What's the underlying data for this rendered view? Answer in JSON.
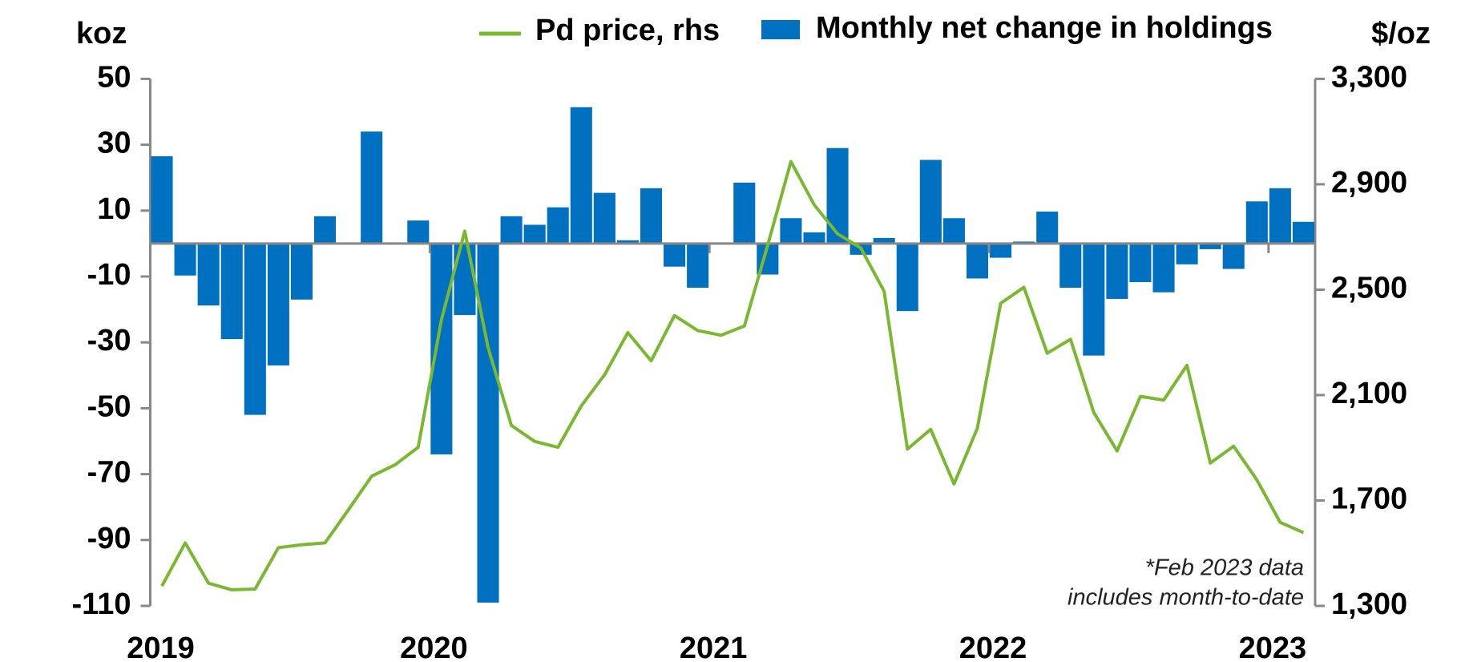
{
  "chart_data": {
    "type": "bar_line",
    "categories": [
      "2019",
      null,
      null,
      null,
      null,
      null,
      null,
      null,
      null,
      null,
      null,
      null,
      "2020",
      null,
      null,
      null,
      null,
      null,
      null,
      null,
      null,
      null,
      null,
      null,
      "2021",
      null,
      null,
      null,
      null,
      null,
      null,
      null,
      null,
      null,
      null,
      null,
      "2022",
      null,
      null,
      null,
      null,
      null,
      null,
      null,
      null,
      null,
      null,
      null,
      "2023",
      null
    ],
    "y_axis_label": "koz",
    "y2_axis_label": "$/oz",
    "series": [
      {
        "name": "Monthly net change in holdings",
        "type": "bar",
        "color": "#0070c0",
        "values": [
          26.5,
          -9.7,
          -18.8,
          -29,
          -52,
          -37,
          -17,
          8.3,
          0,
          34,
          0,
          7,
          -64,
          -21.7,
          -109,
          8.3,
          5.7,
          11,
          41.4,
          15.4,
          1,
          16.8,
          -7,
          -13.4,
          0,
          18.5,
          -9.4,
          7.7,
          3.4,
          29,
          -3.4,
          1.7,
          -20.5,
          25.4,
          7.7,
          -10.6,
          -4.3,
          0.6,
          9.7,
          -13.4,
          -34,
          -16.8,
          -11.7,
          -14.8,
          -6.3,
          -1.7,
          -7.7,
          12.8,
          16.8,
          6.6
        ]
      },
      {
        "name": "Pd price, rhs",
        "type": "line",
        "axis": "y2",
        "color": "#7ab830",
        "values": [
          1375,
          1539,
          1386,
          1361,
          1364,
          1521,
          1532,
          1539,
          1664,
          1792,
          1835,
          1902,
          2387,
          2722,
          2280,
          1985,
          1924,
          1902,
          2059,
          2177,
          2337,
          2230,
          2402,
          2345,
          2327,
          2362,
          2669,
          2986,
          2822,
          2712,
          2658,
          2494,
          1895,
          1970,
          1763,
          1974,
          2448,
          2509,
          2259,
          2312,
          2034,
          1888,
          2095,
          2081,
          2213,
          1842,
          1906,
          1778,
          1617,
          1578
        ]
      }
    ],
    "ylim": [
      -110,
      50
    ],
    "yticks": [
      -110,
      -90,
      -70,
      -50,
      -30,
      -10,
      10,
      30,
      50
    ],
    "y2lim": [
      1300,
      3300
    ],
    "y2ticks": [
      {
        "value": 1300,
        "label": "1,300"
      },
      {
        "value": 1700,
        "label": "1,700"
      },
      {
        "value": 2100,
        "label": "2,100"
      },
      {
        "value": 2500,
        "label": "2,500"
      },
      {
        "value": 2900,
        "label": "2,900"
      },
      {
        "value": 3300,
        "label": "3,300"
      }
    ],
    "annotation": [
      "*Feb 2023 data",
      "includes month-to-date"
    ]
  }
}
